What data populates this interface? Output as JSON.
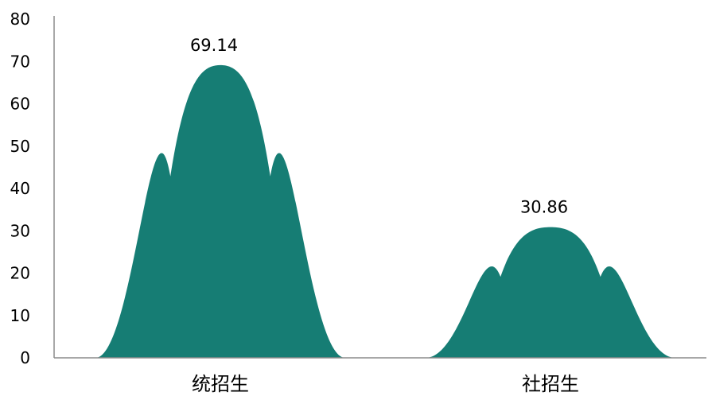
{
  "chart_data": {
    "type": "area",
    "subtype": "peak-shaped bars",
    "title": "",
    "xlabel": "",
    "ylabel": "",
    "categories": [
      "统招生",
      "社招生"
    ],
    "values": [
      69.14,
      30.86
    ],
    "data_labels": [
      "69.14",
      "30.86"
    ],
    "ylim": [
      0,
      80
    ],
    "yticks": [
      0,
      10,
      20,
      30,
      40,
      50,
      60,
      70,
      80
    ],
    "ytick_labels": [
      "0",
      "10",
      "20",
      "30",
      "40",
      "50",
      "60",
      "70",
      "80"
    ],
    "grid": false,
    "legend": "none",
    "colors": {
      "fill": "#167d74",
      "axis": "#8c8c8c",
      "text": "#000000"
    }
  }
}
